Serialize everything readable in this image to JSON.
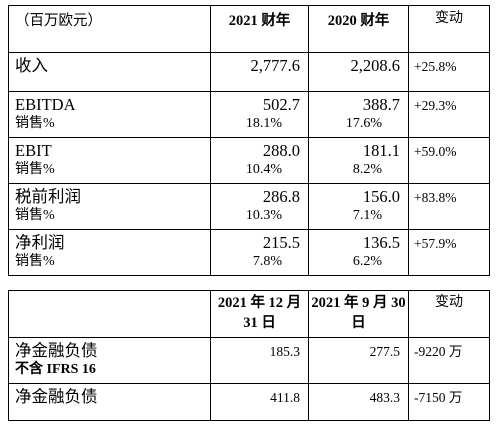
{
  "table1": {
    "header": {
      "unit": "（百万欧元）",
      "col2021": "2021 财年",
      "col2020": "2020 财年",
      "change": "变动"
    },
    "rows": [
      {
        "label": "收入",
        "v2021": "2,777.6",
        "v2020": "2,208.6",
        "change": "+25.8%",
        "sub_label": "",
        "s2021": "",
        "s2020": ""
      },
      {
        "label": "EBITDA",
        "v2021": "502.7",
        "v2020": "388.7",
        "change": "+29.3%",
        "sub_label": "销售%",
        "s2021": "18.1%",
        "s2020": "17.6%"
      },
      {
        "label": "EBIT",
        "v2021": "288.0",
        "v2020": "181.1",
        "change": "+59.0%",
        "sub_label": "销售%",
        "s2021": "10.4%",
        "s2020": "8.2%"
      },
      {
        "label": "税前利润",
        "v2021": "286.8",
        "v2020": "156.0",
        "change": "+83.8%",
        "sub_label": "销售%",
        "s2021": "10.3%",
        "s2020": "7.1%"
      },
      {
        "label": "净利润",
        "v2021": "215.5",
        "v2020": "136.5",
        "change": "+57.9%",
        "sub_label": "销售%",
        "s2021": "7.8%",
        "s2020": "6.2%"
      }
    ]
  },
  "table2": {
    "header": {
      "col_a": "2021 年 12 月 31 日",
      "col_b": "2021 年 9 月 30 日",
      "change": "变动"
    },
    "rows": [
      {
        "label": "净金融负债",
        "sub_label": "不含 IFRS 16",
        "a": "185.3",
        "b": "277.5",
        "change": "-9220 万"
      },
      {
        "label": "净金融负债",
        "sub_label": "",
        "a": "411.8",
        "b": "483.3",
        "change": "-7150 万"
      }
    ]
  }
}
